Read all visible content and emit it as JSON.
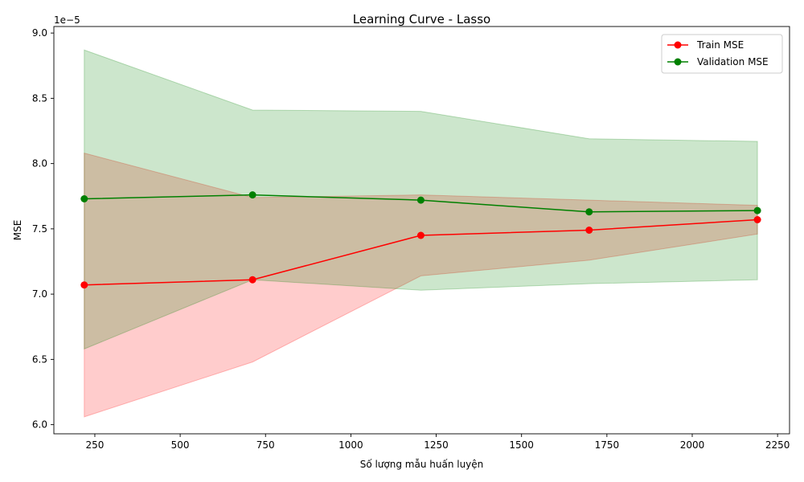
{
  "chart_data": {
    "type": "line",
    "title": "Learning Curve - Lasso",
    "xlabel": "Số lượng mẫu huấn luyện",
    "ylabel": "MSE",
    "offset_label": "1e−5",
    "xlim": [
      130,
      2285
    ],
    "ylim": [
      5.93,
      9.05
    ],
    "xticks": [
      250,
      500,
      750,
      1000,
      1250,
      1500,
      1750,
      2000,
      2250
    ],
    "xtick_labels": [
      "250",
      "500",
      "750",
      "1000",
      "1250",
      "1500",
      "1750",
      "2000",
      "2250"
    ],
    "yticks": [
      6.0,
      6.5,
      7.0,
      7.5,
      8.0,
      8.5,
      9.0
    ],
    "ytick_labels": [
      "6.0",
      "6.5",
      "7.0",
      "7.5",
      "8.0",
      "8.5",
      "9.0"
    ],
    "x": [
      219,
      712,
      1205,
      1698,
      2191
    ],
    "series": [
      {
        "name": "Train MSE",
        "color": "#ff0000",
        "band_color": "#ff0000",
        "values": [
          7.07,
          7.11,
          7.45,
          7.49,
          7.57
        ],
        "lower": [
          6.06,
          6.48,
          7.14,
          7.26,
          7.46
        ],
        "upper": [
          8.08,
          7.74,
          7.76,
          7.72,
          7.68
        ]
      },
      {
        "name": "Validation MSE",
        "color": "#008000",
        "band_color": "#008000",
        "values": [
          7.73,
          7.76,
          7.72,
          7.63,
          7.64
        ],
        "lower": [
          6.58,
          7.11,
          7.03,
          7.08,
          7.11
        ],
        "upper": [
          8.87,
          8.41,
          8.4,
          8.19,
          8.17
        ]
      }
    ],
    "legend_position": "top-right",
    "grid": false
  }
}
